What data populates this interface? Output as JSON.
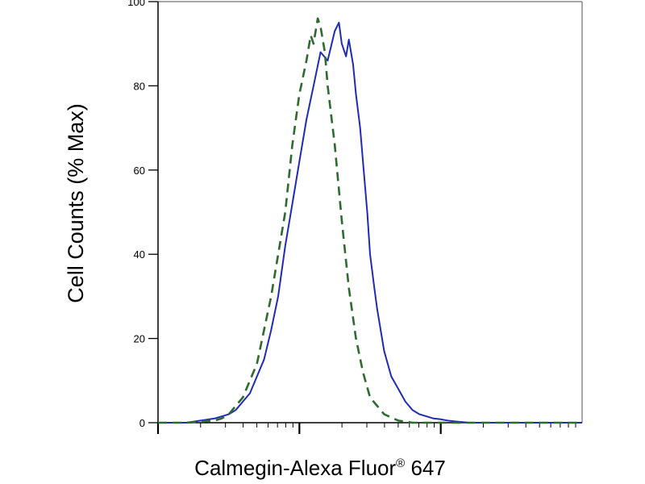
{
  "chart_data": {
    "type": "line",
    "title": "",
    "xlabel": "Calmegin-Alexa Fluor",
    "xlabel_superscript": "®",
    "xlabel_suffix": " 647",
    "ylabel": "Cell Counts (% Max)",
    "x_scale": "log",
    "x_decades": 3,
    "x_tick_labels": [],
    "ylim": [
      0,
      100
    ],
    "y_ticks": [
      0,
      20,
      40,
      60,
      80,
      100
    ],
    "grid": false,
    "legend": "none",
    "series": [
      {
        "color": "#1f2bb8",
        "style": "solid",
        "x": [
          0.0,
          0.1,
          0.2,
          0.3,
          0.4,
          0.5,
          0.55,
          0.6,
          0.65,
          0.7,
          0.75,
          0.8,
          0.85,
          0.9,
          0.95,
          1.0,
          1.05,
          1.1,
          1.15,
          1.2,
          1.25,
          1.28,
          1.3,
          1.33,
          1.35,
          1.38,
          1.4,
          1.43,
          1.45,
          1.48,
          1.5,
          1.53,
          1.55,
          1.6,
          1.65,
          1.7,
          1.75,
          1.8,
          1.85,
          1.9,
          1.95,
          2.0,
          2.05,
          2.1,
          2.2,
          2.3,
          2.4,
          2.5,
          2.6,
          2.75,
          3.0
        ],
        "y": [
          0,
          0,
          0,
          0.5,
          1,
          2,
          3,
          5,
          7,
          11,
          15,
          22,
          30,
          42,
          52,
          62,
          72,
          80,
          88,
          86,
          93,
          95,
          90,
          87,
          91,
          85,
          78,
          70,
          62,
          50,
          40,
          32,
          27,
          17,
          11,
          8,
          5,
          3,
          2,
          1.5,
          1,
          0.8,
          0.5,
          0.3,
          0,
          0,
          0,
          0,
          0,
          0,
          0
        ]
      },
      {
        "color": "#2e6b2e",
        "style": "dashed",
        "x": [
          0.0,
          0.2,
          0.4,
          0.45,
          0.5,
          0.6,
          0.7,
          0.8,
          0.9,
          0.95,
          1.0,
          1.05,
          1.08,
          1.1,
          1.13,
          1.15,
          1.18,
          1.2,
          1.25,
          1.3,
          1.35,
          1.4,
          1.45,
          1.5,
          1.55,
          1.6,
          1.7,
          1.8,
          1.9,
          2.0,
          2.2,
          3.0
        ],
        "y": [
          0,
          0,
          0.5,
          1,
          2,
          6,
          14,
          30,
          50,
          66,
          78,
          86,
          92,
          90,
          96,
          94,
          88,
          80,
          66,
          48,
          32,
          20,
          12,
          6,
          4,
          2,
          0.5,
          0,
          0,
          0,
          0,
          0
        ]
      }
    ]
  }
}
